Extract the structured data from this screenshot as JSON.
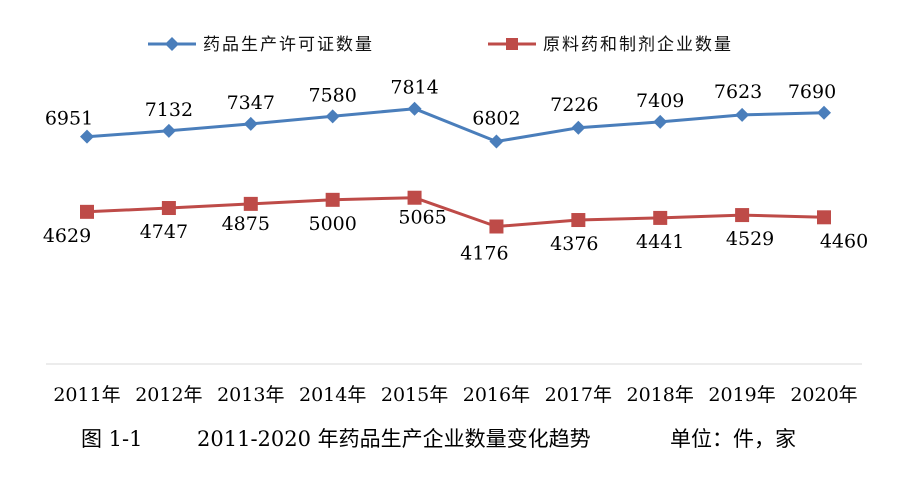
{
  "chart_data": {
    "type": "line",
    "categories": [
      "2011年",
      "2012年",
      "2013年",
      "2014年",
      "2015年",
      "2016年",
      "2017年",
      "2018年",
      "2019年",
      "2020年"
    ],
    "series": [
      {
        "name": "药品生产许可证数量",
        "color": "#4a7ebb",
        "marker": "diamond",
        "values": [
          6951,
          7132,
          7347,
          7580,
          7814,
          6802,
          7226,
          7409,
          7623,
          7690
        ]
      },
      {
        "name": "原料药和制剂企业数量",
        "color": "#be4b48",
        "marker": "square",
        "values": [
          4629,
          4747,
          4875,
          5000,
          5065,
          4176,
          4376,
          4441,
          4529,
          4460
        ]
      }
    ],
    "legend": "top",
    "grid": false
  },
  "caption": {
    "figure_number": "图 1-1",
    "title": "2011-2020 年药品生产企业数量变化趋势",
    "unit": "单位：件，家"
  }
}
